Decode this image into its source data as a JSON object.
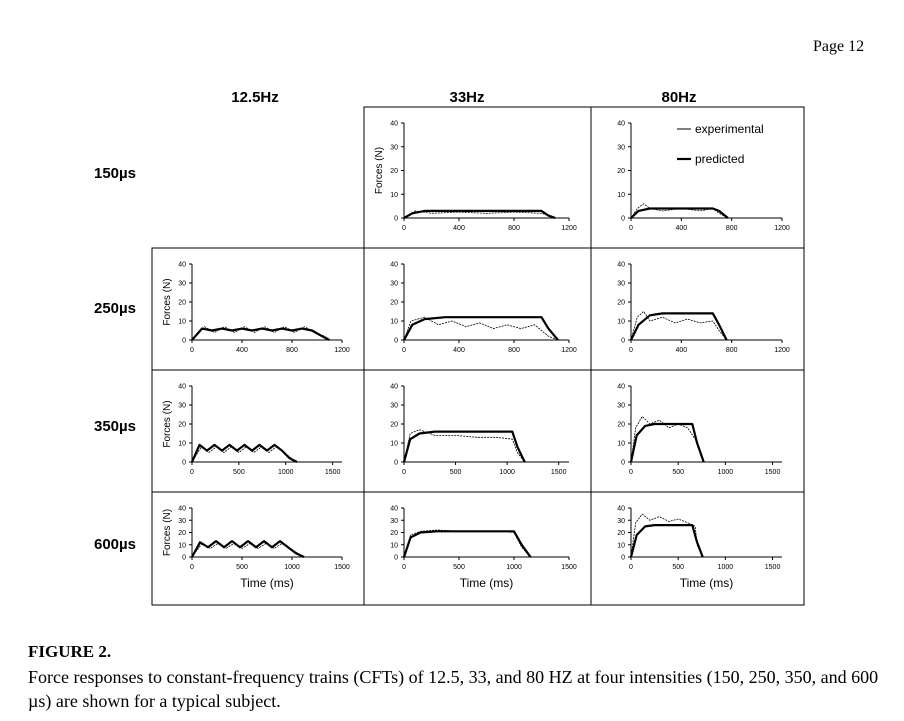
{
  "page": {
    "page_number": "Page 12"
  },
  "columns": [
    "12.5Hz",
    "33Hz",
    "80Hz"
  ],
  "rows": [
    "150µs",
    "250µs",
    "350µs",
    "600µs"
  ],
  "caption": {
    "title": "FIGURE 2.",
    "text": "Force responses to constant-frequency trains (CFTs) of 12.5, 33, and 80 HZ at four intensities (150, 250, 350, and 600 µs) are shown for a typical subject."
  },
  "colors": {
    "experimental": "#000000",
    "predicted": "#000000",
    "frame": "#000000"
  },
  "chart_data": [
    {
      "type": "line",
      "panel": "33Hz-150µs",
      "row": 0,
      "col": 1,
      "ylabel": "Forces (N)",
      "xlabel": "",
      "xlim": [
        0,
        1200
      ],
      "ylim": [
        0,
        40
      ],
      "xticks": [
        0,
        400,
        800,
        1200
      ],
      "yticks": [
        0,
        10,
        20,
        30,
        40
      ],
      "series": [
        {
          "name": "predicted",
          "style": "thick",
          "x": [
            0,
            60,
            150,
            1000,
            1050,
            1100
          ],
          "y": [
            0,
            2,
            3,
            3,
            1,
            0
          ]
        },
        {
          "name": "experimental",
          "style": "thin",
          "x": [
            0,
            80,
            200,
            400,
            600,
            800,
            1000,
            1050,
            1100
          ],
          "y": [
            0,
            3,
            2,
            2.5,
            2,
            2.5,
            2,
            1,
            0
          ]
        }
      ]
    },
    {
      "type": "line",
      "panel": "80Hz-150µs",
      "row": 0,
      "col": 2,
      "ylabel": "",
      "xlabel": "",
      "xlim": [
        0,
        1200
      ],
      "ylim": [
        0,
        40
      ],
      "xticks": [
        0,
        400,
        800,
        1200
      ],
      "yticks": [
        0,
        10,
        20,
        30,
        40
      ],
      "legend": {
        "position": "top-right",
        "entries": [
          "experimental",
          "predicted"
        ]
      },
      "series": [
        {
          "name": "predicted",
          "style": "thick",
          "x": [
            0,
            60,
            150,
            650,
            700,
            770
          ],
          "y": [
            0,
            3,
            4,
            4,
            3,
            0
          ]
        },
        {
          "name": "experimental",
          "style": "thin",
          "x": [
            0,
            50,
            100,
            150,
            250,
            400,
            550,
            650,
            700,
            770
          ],
          "y": [
            0,
            4,
            6,
            4,
            3,
            4,
            3,
            4,
            2,
            0
          ]
        }
      ]
    },
    {
      "type": "line",
      "panel": "12.5Hz-250µs",
      "row": 1,
      "col": 0,
      "ylabel": "Forces (N)",
      "xlabel": "",
      "xlim": [
        0,
        1200
      ],
      "ylim": [
        0,
        40
      ],
      "xticks": [
        0,
        400,
        800,
        1200
      ],
      "yticks": [
        0,
        10,
        20,
        30,
        40
      ],
      "series": [
        {
          "name": "predicted",
          "style": "thick",
          "x": [
            0,
            80,
            160,
            240,
            320,
            400,
            480,
            560,
            640,
            720,
            800,
            880,
            960,
            1040,
            1100
          ],
          "y": [
            0,
            6,
            5,
            6,
            5,
            6,
            5,
            6,
            5,
            6,
            5,
            6,
            5,
            2,
            0
          ]
        },
        {
          "name": "experimental",
          "style": "thin",
          "x": [
            0,
            100,
            180,
            260,
            340,
            420,
            500,
            580,
            660,
            740,
            820,
            900,
            980,
            1060,
            1100
          ],
          "y": [
            0,
            7,
            4,
            7,
            4,
            7,
            4,
            7,
            4,
            7,
            4,
            7,
            4,
            2,
            0
          ]
        }
      ]
    },
    {
      "type": "line",
      "panel": "33Hz-250µs",
      "row": 1,
      "col": 1,
      "ylabel": "",
      "xlabel": "",
      "xlim": [
        0,
        1200
      ],
      "ylim": [
        0,
        40
      ],
      "xticks": [
        0,
        400,
        800,
        1200
      ],
      "yticks": [
        0,
        10,
        20,
        30,
        40
      ],
      "series": [
        {
          "name": "predicted",
          "style": "thick",
          "x": [
            0,
            60,
            150,
            300,
            1000,
            1050,
            1120
          ],
          "y": [
            0,
            8,
            11,
            12,
            12,
            6,
            0
          ]
        },
        {
          "name": "experimental",
          "style": "thin",
          "x": [
            0,
            50,
            150,
            250,
            350,
            450,
            550,
            650,
            750,
            850,
            950,
            1050,
            1120
          ],
          "y": [
            0,
            10,
            12,
            8,
            10,
            7,
            9,
            6,
            8,
            6,
            8,
            2,
            0
          ]
        }
      ]
    },
    {
      "type": "line",
      "panel": "80Hz-250µs",
      "row": 1,
      "col": 2,
      "ylabel": "",
      "xlabel": "",
      "xlim": [
        0,
        1200
      ],
      "ylim": [
        0,
        40
      ],
      "xticks": [
        0,
        400,
        800,
        1200
      ],
      "yticks": [
        0,
        10,
        20,
        30,
        40
      ],
      "series": [
        {
          "name": "predicted",
          "style": "thick",
          "x": [
            0,
            60,
            150,
            250,
            650,
            700,
            760
          ],
          "y": [
            0,
            8,
            13,
            14,
            14,
            8,
            0
          ]
        },
        {
          "name": "experimental",
          "style": "thin",
          "x": [
            0,
            50,
            100,
            150,
            250,
            350,
            450,
            550,
            650,
            700,
            760
          ],
          "y": [
            0,
            12,
            15,
            10,
            12,
            9,
            11,
            9,
            10,
            5,
            0
          ]
        }
      ]
    },
    {
      "type": "line",
      "panel": "12.5Hz-350µs",
      "row": 2,
      "col": 0,
      "ylabel": "Forces (N)",
      "xlabel": "",
      "xlim": [
        0,
        1600
      ],
      "ylim": [
        0,
        40
      ],
      "xticks": [
        0,
        500,
        1000,
        1500
      ],
      "yticks": [
        0,
        10,
        20,
        30,
        40
      ],
      "series": [
        {
          "name": "predicted",
          "style": "thick",
          "x": [
            0,
            80,
            160,
            240,
            320,
            400,
            480,
            560,
            640,
            720,
            800,
            880,
            960,
            1040,
            1120
          ],
          "y": [
            0,
            9,
            6,
            9,
            6,
            9,
            6,
            9,
            6,
            9,
            6,
            9,
            6,
            2,
            0
          ]
        },
        {
          "name": "experimental",
          "style": "thin",
          "x": [
            0,
            100,
            180,
            260,
            340,
            420,
            500,
            580,
            660,
            740,
            820,
            900,
            980,
            1060,
            1120
          ],
          "y": [
            0,
            8,
            5,
            8,
            5,
            8,
            5,
            8,
            5,
            8,
            5,
            8,
            5,
            2,
            0
          ]
        }
      ]
    },
    {
      "type": "line",
      "panel": "33Hz-350µs",
      "row": 2,
      "col": 1,
      "ylabel": "",
      "xlabel": "",
      "xlim": [
        0,
        1600
      ],
      "ylim": [
        0,
        40
      ],
      "xticks": [
        0,
        500,
        1000,
        1500
      ],
      "yticks": [
        0,
        10,
        20,
        30,
        40
      ],
      "series": [
        {
          "name": "predicted",
          "style": "thick",
          "x": [
            0,
            60,
            150,
            300,
            1050,
            1100,
            1170
          ],
          "y": [
            0,
            12,
            15,
            16,
            16,
            8,
            0
          ]
        },
        {
          "name": "experimental",
          "style": "thin",
          "x": [
            0,
            60,
            150,
            300,
            500,
            700,
            900,
            1050,
            1100,
            1170
          ],
          "y": [
            0,
            15,
            17,
            14,
            14,
            13,
            13,
            12,
            5,
            0
          ]
        }
      ]
    },
    {
      "type": "line",
      "panel": "80Hz-350µs",
      "row": 2,
      "col": 2,
      "ylabel": "",
      "xlabel": "",
      "xlim": [
        0,
        1600
      ],
      "ylim": [
        0,
        40
      ],
      "xticks": [
        0,
        500,
        1000,
        1500
      ],
      "yticks": [
        0,
        10,
        20,
        30,
        40
      ],
      "series": [
        {
          "name": "predicted",
          "style": "thick",
          "x": [
            0,
            60,
            150,
            250,
            650,
            700,
            770
          ],
          "y": [
            0,
            14,
            19,
            20,
            20,
            10,
            0
          ]
        },
        {
          "name": "experimental",
          "style": "thin",
          "x": [
            0,
            50,
            120,
            200,
            300,
            400,
            500,
            600,
            680,
            770
          ],
          "y": [
            0,
            18,
            24,
            20,
            22,
            18,
            20,
            18,
            12,
            0
          ]
        }
      ]
    },
    {
      "type": "line",
      "panel": "12.5Hz-600µs",
      "row": 3,
      "col": 0,
      "ylabel": "Forces (N)",
      "xlabel": "Time (ms)",
      "xlim": [
        0,
        1500
      ],
      "ylim": [
        0,
        40
      ],
      "xticks": [
        0,
        500,
        1000,
        1500
      ],
      "yticks": [
        0,
        10,
        20,
        30,
        40
      ],
      "series": [
        {
          "name": "predicted",
          "style": "thick",
          "x": [
            0,
            80,
            160,
            240,
            320,
            400,
            480,
            560,
            640,
            720,
            800,
            880,
            960,
            1040,
            1120
          ],
          "y": [
            0,
            12,
            8,
            13,
            8,
            13,
            8,
            13,
            8,
            13,
            8,
            13,
            8,
            3,
            0
          ]
        },
        {
          "name": "experimental",
          "style": "thin",
          "x": [
            0,
            100,
            180,
            260,
            340,
            420,
            500,
            580,
            660,
            740,
            820,
            900,
            980,
            1060,
            1120
          ],
          "y": [
            0,
            11,
            7,
            11,
            7,
            11,
            7,
            11,
            7,
            11,
            7,
            11,
            7,
            3,
            0
          ]
        }
      ]
    },
    {
      "type": "line",
      "panel": "33Hz-600µs",
      "row": 3,
      "col": 1,
      "ylabel": "",
      "xlabel": "Time (ms)",
      "xlim": [
        0,
        1500
      ],
      "ylim": [
        0,
        40
      ],
      "xticks": [
        0,
        500,
        1000,
        1500
      ],
      "yticks": [
        0,
        10,
        20,
        30,
        40
      ],
      "series": [
        {
          "name": "predicted",
          "style": "thick",
          "x": [
            0,
            60,
            150,
            300,
            1000,
            1070,
            1150
          ],
          "y": [
            0,
            16,
            20,
            21,
            21,
            10,
            0
          ]
        },
        {
          "name": "experimental",
          "style": "thin",
          "x": [
            0,
            60,
            150,
            300,
            500,
            700,
            900,
            1000,
            1070,
            1150
          ],
          "y": [
            0,
            18,
            21,
            22,
            21,
            21,
            21,
            20,
            8,
            0
          ]
        }
      ]
    },
    {
      "type": "line",
      "panel": "80Hz-600µs",
      "row": 3,
      "col": 2,
      "ylabel": "",
      "xlabel": "Time (ms)",
      "xlim": [
        0,
        1600
      ],
      "ylim": [
        0,
        40
      ],
      "xticks": [
        0,
        500,
        1000,
        1500
      ],
      "yticks": [
        0,
        10,
        20,
        30,
        40
      ],
      "series": [
        {
          "name": "predicted",
          "style": "thick",
          "x": [
            0,
            60,
            150,
            250,
            650,
            700,
            760
          ],
          "y": [
            0,
            18,
            25,
            26,
            26,
            12,
            0
          ]
        },
        {
          "name": "experimental",
          "style": "thin",
          "x": [
            0,
            50,
            120,
            200,
            300,
            400,
            500,
            600,
            680,
            700,
            760
          ],
          "y": [
            0,
            28,
            35,
            30,
            33,
            29,
            31,
            28,
            25,
            10,
            0
          ]
        }
      ]
    }
  ]
}
